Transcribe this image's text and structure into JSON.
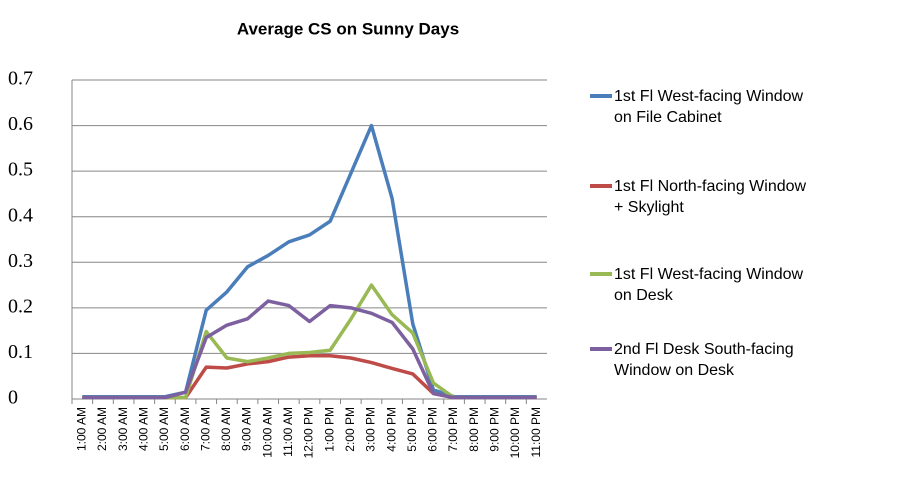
{
  "chart_data": {
    "type": "line",
    "title": "Average CS on Sunny Days",
    "categories": [
      "1:00 AM",
      "2:00 AM",
      "3:00 AM",
      "4:00 AM",
      "5:00 AM",
      "6:00 AM",
      "7:00 AM",
      "8:00 AM",
      "9:00 AM",
      "10:00 AM",
      "11:00 AM",
      "12:00 PM",
      "1:00 PM",
      "2:00 PM",
      "3:00 PM",
      "4:00 PM",
      "5:00 PM",
      "6:00 PM",
      "7:00 PM",
      "8:00 PM",
      "9:00 PM",
      "10:00 PM",
      "11:00 PM"
    ],
    "series": [
      {
        "name": "1st Fl West-facing Window on File Cabinet",
        "color": "#4a7ebb",
        "values": [
          0.005,
          0.005,
          0.005,
          0.005,
          0.005,
          0.015,
          0.195,
          0.235,
          0.29,
          0.315,
          0.345,
          0.36,
          0.39,
          0.495,
          0.6,
          0.44,
          0.165,
          0.02,
          0.005,
          0.005,
          0.005,
          0.005,
          0.005
        ]
      },
      {
        "name": "1st Fl North-facing Window + Skylight",
        "color": "#be4b48",
        "values": [
          0.003,
          0.003,
          0.003,
          0.003,
          0.003,
          0.003,
          0.07,
          0.068,
          0.077,
          0.082,
          0.092,
          0.095,
          0.095,
          0.09,
          0.08,
          0.067,
          0.055,
          0.012,
          0.003,
          0.003,
          0.003,
          0.003,
          0.003
        ]
      },
      {
        "name": "1st Fl West-facing Window on Desk",
        "color": "#98b954",
        "values": [
          0.003,
          0.003,
          0.003,
          0.003,
          0.003,
          0.003,
          0.148,
          0.09,
          0.082,
          0.09,
          0.1,
          0.102,
          0.107,
          0.175,
          0.25,
          0.185,
          0.145,
          0.035,
          0.003,
          0.003,
          0.003,
          0.003,
          0.003
        ]
      },
      {
        "name": "2nd Fl Desk South-facing Window on Desk",
        "color": "#7d60a0",
        "values": [
          0.003,
          0.003,
          0.003,
          0.003,
          0.003,
          0.015,
          0.135,
          0.162,
          0.176,
          0.215,
          0.205,
          0.17,
          0.205,
          0.2,
          0.188,
          0.168,
          0.11,
          0.012,
          0.003,
          0.003,
          0.003,
          0.003,
          0.003
        ]
      }
    ],
    "ylim": [
      0,
      0.7
    ],
    "yticks": [
      0,
      0.1,
      0.2,
      0.3,
      0.4,
      0.5,
      0.6,
      0.7
    ],
    "grid": true,
    "legend": "right"
  }
}
